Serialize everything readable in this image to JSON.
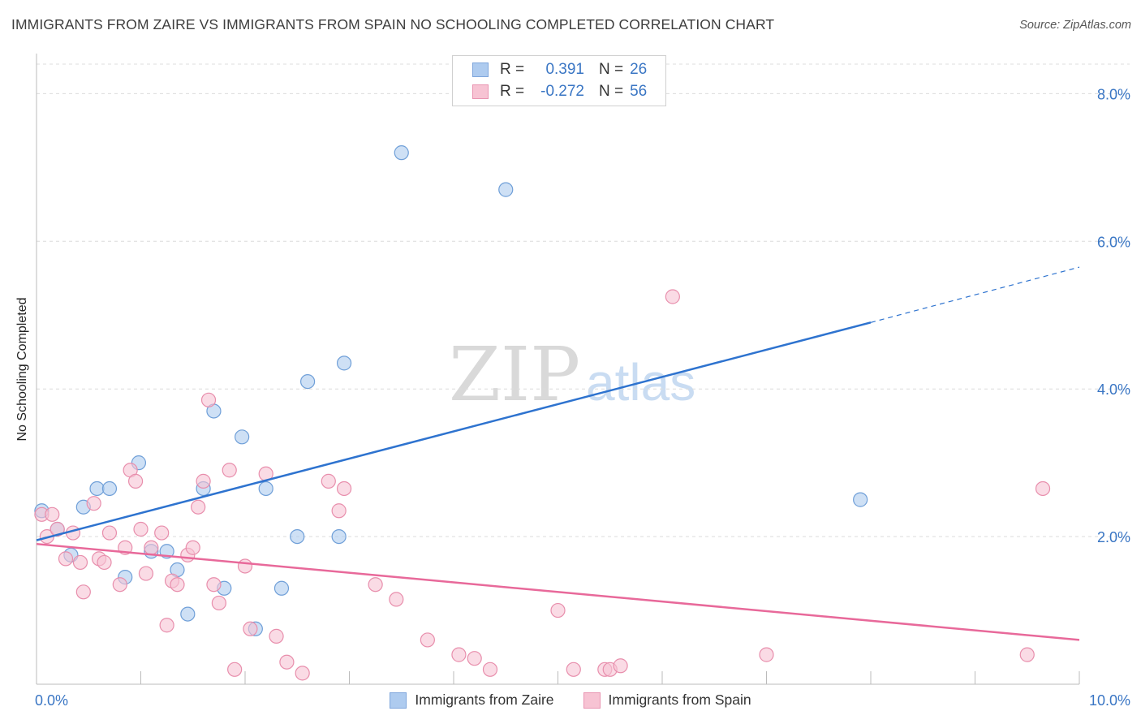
{
  "header": {
    "title": "IMMIGRANTS FROM ZAIRE VS IMMIGRANTS FROM SPAIN NO SCHOOLING COMPLETED CORRELATION CHART",
    "source": "Source: ZipAtlas.com"
  },
  "watermark": {
    "zip": "ZIP",
    "atlas": "atlas"
  },
  "legend": {
    "r_label": "R =",
    "n_label": "N =",
    "rows": [
      {
        "r": "0.391",
        "n": "26",
        "color": "#aecbef",
        "border": "#7fa6dc"
      },
      {
        "r": "-0.272",
        "n": "56",
        "color": "#f7c3d3",
        "border": "#e995b2"
      }
    ]
  },
  "chart_data": {
    "type": "scatter",
    "title": "IMMIGRANTS FROM ZAIRE VS IMMIGRANTS FROM SPAIN NO SCHOOLING COMPLETED CORRELATION CHART",
    "xlabel": "",
    "ylabel": "No Schooling Completed",
    "xlim": [
      0,
      10
    ],
    "ylim": [
      0,
      8.4
    ],
    "x_tick_labels": [
      "0.0%",
      "10.0%"
    ],
    "y_ticks": [
      2,
      4,
      6,
      8
    ],
    "y_tick_labels": [
      "2.0%",
      "4.0%",
      "6.0%",
      "8.0%"
    ],
    "grid": true,
    "series": [
      {
        "name": "Immigrants from Zaire",
        "color": "#aecbef",
        "stroke": "#6f9fd8",
        "line_color": "#2e73cf",
        "trend": {
          "x0": 0.0,
          "y0": 1.95,
          "x1": 8.0,
          "y1": 4.9,
          "dash_to_x": 10.0,
          "dash_to_y": 5.65
        },
        "points": [
          [
            0.05,
            2.35
          ],
          [
            0.2,
            2.1
          ],
          [
            0.33,
            1.75
          ],
          [
            0.45,
            2.4
          ],
          [
            0.58,
            2.65
          ],
          [
            0.7,
            2.65
          ],
          [
            0.85,
            1.45
          ],
          [
            0.98,
            3.0
          ],
          [
            1.1,
            1.8
          ],
          [
            1.25,
            1.8
          ],
          [
            1.35,
            1.55
          ],
          [
            1.45,
            0.95
          ],
          [
            1.6,
            2.65
          ],
          [
            1.7,
            3.7
          ],
          [
            1.8,
            1.3
          ],
          [
            1.97,
            3.35
          ],
          [
            2.1,
            0.75
          ],
          [
            2.2,
            2.65
          ],
          [
            2.35,
            1.3
          ],
          [
            2.5,
            2.0
          ],
          [
            2.6,
            4.1
          ],
          [
            2.9,
            2.0
          ],
          [
            2.95,
            4.35
          ],
          [
            3.5,
            7.2
          ],
          [
            4.5,
            6.7
          ],
          [
            7.9,
            2.5
          ]
        ]
      },
      {
        "name": "Immigrants from Spain",
        "color": "#f7c3d3",
        "stroke": "#e88eac",
        "line_color": "#e8699a",
        "trend": {
          "x0": 0.0,
          "y0": 1.9,
          "x1": 10.0,
          "y1": 0.6
        },
        "points": [
          [
            0.05,
            2.3
          ],
          [
            0.1,
            2.0
          ],
          [
            0.15,
            2.3
          ],
          [
            0.2,
            2.1
          ],
          [
            0.28,
            1.7
          ],
          [
            0.35,
            2.05
          ],
          [
            0.42,
            1.65
          ],
          [
            0.45,
            1.25
          ],
          [
            0.55,
            2.45
          ],
          [
            0.6,
            1.7
          ],
          [
            0.65,
            1.65
          ],
          [
            0.7,
            2.05
          ],
          [
            0.8,
            1.35
          ],
          [
            0.85,
            1.85
          ],
          [
            0.9,
            2.9
          ],
          [
            0.95,
            2.75
          ],
          [
            1.0,
            2.1
          ],
          [
            1.05,
            1.5
          ],
          [
            1.1,
            1.85
          ],
          [
            1.2,
            2.05
          ],
          [
            1.25,
            0.8
          ],
          [
            1.3,
            1.4
          ],
          [
            1.35,
            1.35
          ],
          [
            1.45,
            1.75
          ],
          [
            1.5,
            1.85
          ],
          [
            1.55,
            2.4
          ],
          [
            1.6,
            2.75
          ],
          [
            1.65,
            3.85
          ],
          [
            1.7,
            1.35
          ],
          [
            1.75,
            1.1
          ],
          [
            1.85,
            2.9
          ],
          [
            1.9,
            0.2
          ],
          [
            2.0,
            1.6
          ],
          [
            2.05,
            0.75
          ],
          [
            2.2,
            2.85
          ],
          [
            2.3,
            0.65
          ],
          [
            2.4,
            0.3
          ],
          [
            2.55,
            0.15
          ],
          [
            2.8,
            2.75
          ],
          [
            2.9,
            2.35
          ],
          [
            2.95,
            2.65
          ],
          [
            3.25,
            1.35
          ],
          [
            3.45,
            1.15
          ],
          [
            3.75,
            0.6
          ],
          [
            4.05,
            0.4
          ],
          [
            4.2,
            0.35
          ],
          [
            4.35,
            0.2
          ],
          [
            5.0,
            1.0
          ],
          [
            5.15,
            0.2
          ],
          [
            5.45,
            0.2
          ],
          [
            5.5,
            0.2
          ],
          [
            5.6,
            0.25
          ],
          [
            6.1,
            5.25
          ],
          [
            7.0,
            0.4
          ],
          [
            9.5,
            0.4
          ],
          [
            9.65,
            2.65
          ]
        ]
      }
    ]
  }
}
